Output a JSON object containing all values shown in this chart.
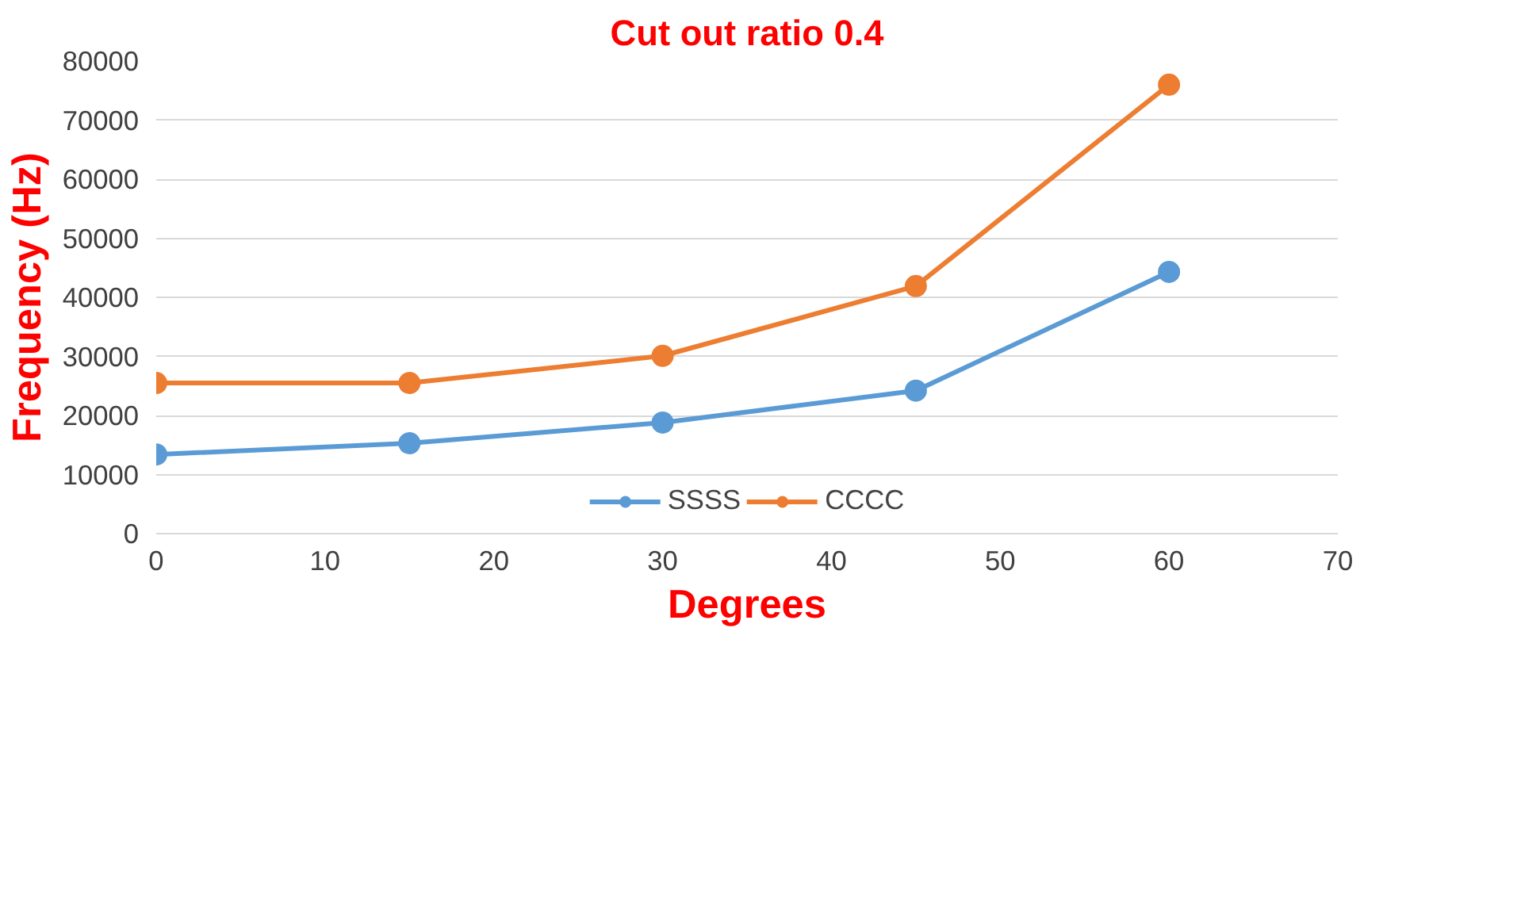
{
  "chart_data": {
    "type": "line",
    "title": "Cut out ratio 0.4",
    "xlabel": "Degrees",
    "ylabel": "Frequency (Hz)",
    "x": [
      0,
      15,
      30,
      45,
      60
    ],
    "series": [
      {
        "name": "SSSS",
        "color": "#5b9bd5",
        "values": [
          13400,
          15300,
          18800,
          24200,
          44300
        ]
      },
      {
        "name": "CCCC",
        "color": "#ed7d31",
        "values": [
          25500,
          25500,
          30100,
          41900,
          76000
        ]
      }
    ],
    "xlim": [
      0,
      70
    ],
    "xticks": [
      0,
      10,
      20,
      30,
      40,
      50,
      60,
      70
    ],
    "ylim": [
      0,
      80000
    ],
    "yticks": [
      0,
      10000,
      20000,
      30000,
      40000,
      50000,
      60000,
      70000,
      80000
    ],
    "grid": "y",
    "legend": "bottom",
    "marker": "circle",
    "line_style": "solid"
  }
}
